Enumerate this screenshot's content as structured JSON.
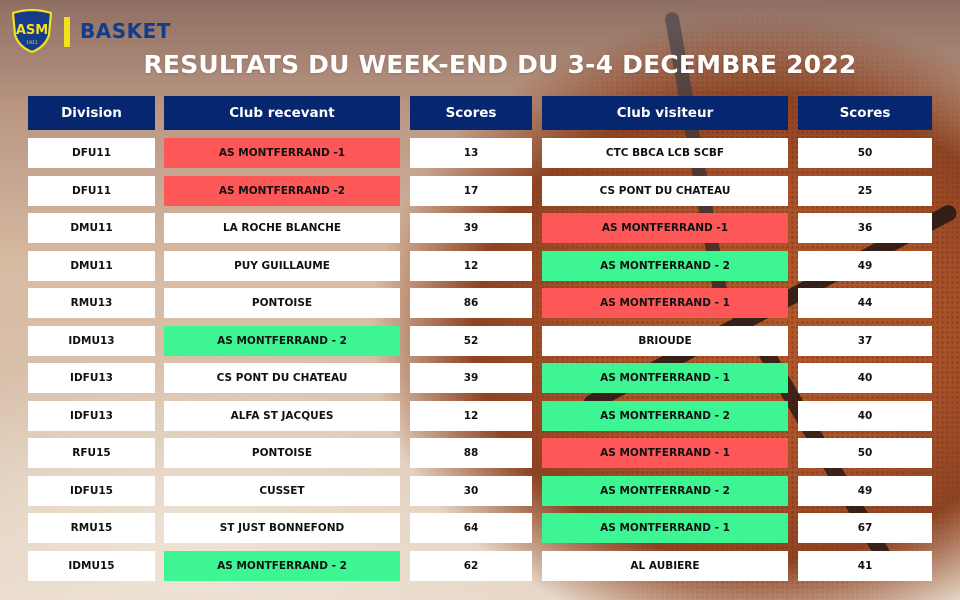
{
  "header": {
    "brand": "BASKET",
    "logo_text": "ASM",
    "logo_year": "1911",
    "title": "RESULTATS DU WEEK-END DU 3-4 DECEMBRE 2022"
  },
  "colors": {
    "header_bg": "#06266f",
    "win": "#3df593",
    "loss": "#fe5757",
    "neutral": "#ffffff",
    "brand_blue": "#123c8c",
    "brand_yellow": "#f2e21d"
  },
  "table": {
    "columns": [
      "Division",
      "Club recevant",
      "Scores",
      "Club visiteur",
      "Scores"
    ],
    "rows": [
      {
        "division": "DFU11",
        "home": "AS MONTFERRAND -1",
        "home_score": "13",
        "away": "CTC BBCA LCB SCBF",
        "away_score": "50",
        "home_status": "lose",
        "away_status": ""
      },
      {
        "division": "DFU11",
        "home": "AS MONTFERRAND -2",
        "home_score": "17",
        "away": "CS PONT DU CHATEAU",
        "away_score": "25",
        "home_status": "lose",
        "away_status": ""
      },
      {
        "division": "DMU11",
        "home": "LA ROCHE BLANCHE",
        "home_score": "39",
        "away": "AS MONTFERRAND -1",
        "away_score": "36",
        "home_status": "",
        "away_status": "lose"
      },
      {
        "division": "DMU11",
        "home": "PUY GUILLAUME",
        "home_score": "12",
        "away": "AS MONTFERRAND - 2",
        "away_score": "49",
        "home_status": "",
        "away_status": "win"
      },
      {
        "division": "RMU13",
        "home": "PONTOISE",
        "home_score": "86",
        "away": "AS MONTFERRAND - 1",
        "away_score": "44",
        "home_status": "",
        "away_status": "lose"
      },
      {
        "division": "IDMU13",
        "home": "AS MONTFERRAND - 2",
        "home_score": "52",
        "away": "BRIOUDE",
        "away_score": "37",
        "home_status": "win",
        "away_status": ""
      },
      {
        "division": "IDFU13",
        "home": "CS PONT DU CHATEAU",
        "home_score": "39",
        "away": "AS MONTFERRAND - 1",
        "away_score": "40",
        "home_status": "",
        "away_status": "win"
      },
      {
        "division": "IDFU13",
        "home": "ALFA ST JACQUES",
        "home_score": "12",
        "away": "AS MONTFERRAND - 2",
        "away_score": "40",
        "home_status": "",
        "away_status": "win"
      },
      {
        "division": "RFU15",
        "home": "PONTOISE",
        "home_score": "88",
        "away": "AS MONTFERRAND - 1",
        "away_score": "50",
        "home_status": "",
        "away_status": "lose"
      },
      {
        "division": "IDFU15",
        "home": "CUSSET",
        "home_score": "30",
        "away": "AS MONTFERRAND - 2",
        "away_score": "49",
        "home_status": "",
        "away_status": "win"
      },
      {
        "division": "RMU15",
        "home": "ST JUST BONNEFOND",
        "home_score": "64",
        "away": "AS MONTFERRAND - 1",
        "away_score": "67",
        "home_status": "",
        "away_status": "win"
      },
      {
        "division": "IDMU15",
        "home": "AS MONTFERRAND - 2",
        "home_score": "62",
        "away": "AL AUBIERE",
        "away_score": "41",
        "home_status": "win",
        "away_status": ""
      }
    ]
  }
}
